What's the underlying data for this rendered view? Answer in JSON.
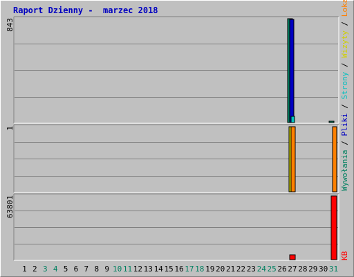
{
  "title": "Raport Dzienny -  marzec 2018",
  "panels": [
    {
      "scale": "843"
    },
    {
      "scale": "1"
    },
    {
      "scale": "63801"
    }
  ],
  "legend": {
    "top": [
      {
        "text": "Wywołania",
        "color": "#008060"
      },
      {
        "text": " / ",
        "color": "#000000"
      },
      {
        "text": "Pliki",
        "color": "#0000c0"
      },
      {
        "text": " / ",
        "color": "#000000"
      },
      {
        "text": "Strony",
        "color": "#00c0c0"
      },
      {
        "text": " / ",
        "color": "#000000"
      },
      {
        "text": "Wizyty",
        "color": "#d0d000"
      },
      {
        "text": " / ",
        "color": "#000000"
      },
      {
        "text": "Lokalizacje",
        "color": "#ff8000"
      }
    ],
    "bottom": {
      "text": "KB",
      "color": "#ff0000"
    }
  },
  "chart_data": {
    "type": "bar",
    "title": "Raport Dzienny -  marzec 2018",
    "categories": [
      "1",
      "2",
      "3",
      "4",
      "5",
      "6",
      "7",
      "8",
      "9",
      "10",
      "11",
      "12",
      "13",
      "14",
      "15",
      "16",
      "17",
      "18",
      "19",
      "20",
      "21",
      "22",
      "23",
      "24",
      "25",
      "26",
      "27",
      "28",
      "29",
      "30",
      "31"
    ],
    "weekend_days": [
      "3",
      "4",
      "10",
      "11",
      "17",
      "18",
      "24",
      "25",
      "31"
    ],
    "colors": {
      "Wywołania": "#008060",
      "Pliki": "#0000c0",
      "Strony": "#00c0c0",
      "Wizyty": "#d0d000",
      "Lokalizacje": "#ff8000",
      "KB": "#ff0000"
    },
    "panel1": {
      "ylim": [
        0,
        843
      ],
      "series": [
        {
          "name": "Wywołania",
          "values": [
            0,
            0,
            0,
            0,
            0,
            0,
            0,
            0,
            0,
            0,
            0,
            0,
            0,
            0,
            0,
            0,
            0,
            0,
            0,
            0,
            0,
            0,
            0,
            0,
            0,
            0,
            843,
            0,
            0,
            0,
            10
          ]
        },
        {
          "name": "Pliki",
          "values": [
            0,
            0,
            0,
            0,
            0,
            0,
            0,
            0,
            0,
            0,
            0,
            0,
            0,
            0,
            0,
            0,
            0,
            0,
            0,
            0,
            0,
            0,
            0,
            0,
            0,
            0,
            840,
            0,
            0,
            0,
            0
          ]
        },
        {
          "name": "Strony",
          "values": [
            0,
            0,
            0,
            0,
            0,
            0,
            0,
            0,
            0,
            0,
            0,
            0,
            0,
            0,
            0,
            0,
            0,
            0,
            0,
            0,
            0,
            0,
            0,
            0,
            0,
            0,
            50,
            0,
            0,
            0,
            0
          ]
        }
      ]
    },
    "panel2": {
      "ylim": [
        0,
        1
      ],
      "series": [
        {
          "name": "Wizyty",
          "values": [
            0,
            0,
            0,
            0,
            0,
            0,
            0,
            0,
            0,
            0,
            0,
            0,
            0,
            0,
            0,
            0,
            0,
            0,
            0,
            0,
            0,
            0,
            0,
            0,
            0,
            0,
            1,
            0,
            0,
            0,
            0
          ]
        },
        {
          "name": "Lokalizacje",
          "values": [
            0,
            0,
            0,
            0,
            0,
            0,
            0,
            0,
            0,
            0,
            0,
            0,
            0,
            0,
            0,
            0,
            0,
            0,
            0,
            0,
            0,
            0,
            0,
            0,
            0,
            0,
            1,
            0,
            0,
            0,
            1
          ]
        }
      ]
    },
    "panel3": {
      "ylim": [
        0,
        63801
      ],
      "series": [
        {
          "name": "KB",
          "values": [
            0,
            0,
            0,
            0,
            0,
            0,
            0,
            0,
            0,
            0,
            0,
            0,
            0,
            0,
            0,
            0,
            0,
            0,
            0,
            0,
            0,
            0,
            0,
            0,
            0,
            0,
            5000,
            0,
            0,
            0,
            63801
          ]
        }
      ]
    }
  }
}
